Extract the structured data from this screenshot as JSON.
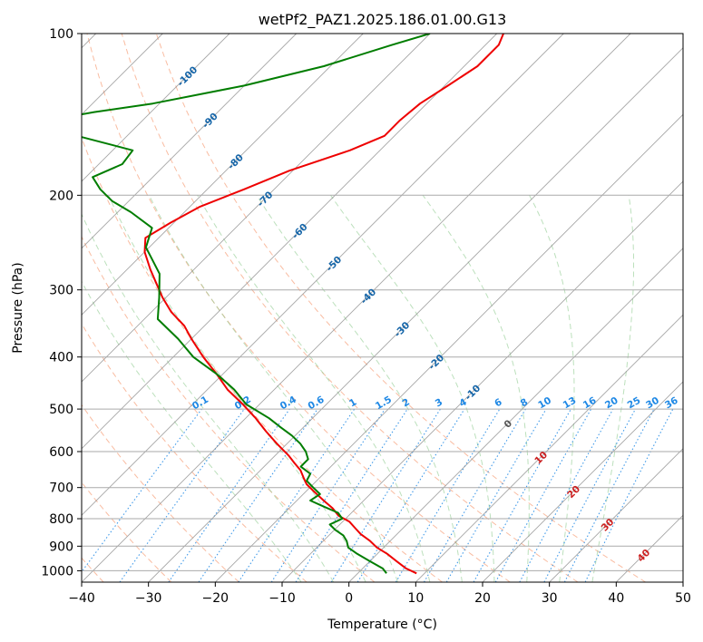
{
  "chart_data": {
    "type": "skew-t",
    "title": "wetPf2_PAZ1.2025.186.01.00.G13",
    "xlabel": "Temperature (°C)",
    "ylabel": "Pressure (hPa)",
    "xlim": [
      -40,
      50
    ],
    "ylim": [
      1050,
      100
    ],
    "x_ticks": [
      "−40",
      "−30",
      "−20",
      "−10",
      "0",
      "10",
      "20",
      "30",
      "40",
      "50"
    ],
    "y_ticks": [
      "100",
      "200",
      "300",
      "400",
      "500",
      "600",
      "700",
      "800",
      "900",
      "1000"
    ],
    "y_scale": "log",
    "grid": true,
    "series": [
      {
        "role": "temperature",
        "color": "#ee0000",
        "pressure": [
          1011,
          990,
          960,
          930,
          905,
          880,
          855,
          835,
          810,
          790,
          765,
          740,
          710,
          690,
          670,
          650,
          630,
          610,
          580,
          550,
          520,
          490,
          460,
          430,
          400,
          370,
          350,
          330,
          310,
          295,
          275,
          255,
          240,
          225,
          210,
          195,
          180,
          165,
          155,
          145,
          135,
          125,
          115,
          105,
          100
        ],
        "temperature": [
          8.8,
          6.5,
          4.0,
          1.5,
          -1.0,
          -3.0,
          -5.4,
          -7.0,
          -9.0,
          -11.5,
          -13.5,
          -16.0,
          -19.0,
          -21.0,
          -22.5,
          -24.0,
          -26.0,
          -28.0,
          -31.5,
          -35.0,
          -38.5,
          -42.5,
          -47.0,
          -51.0,
          -55.5,
          -60.0,
          -63.0,
          -67.0,
          -70.5,
          -73.0,
          -76.5,
          -80.0,
          -82.0,
          -80.5,
          -78.5,
          -74.5,
          -70.5,
          -64.5,
          -61.5,
          -61.5,
          -61.0,
          -59.5,
          -58.0,
          -58.0,
          -59.0
        ],
        "label": "temperature"
      },
      {
        "role": "dewpoint",
        "color": "#007d00",
        "pressure": [
          1011,
          990,
          960,
          930,
          905,
          880,
          860,
          840,
          820,
          800,
          780,
          760,
          740,
          720,
          700,
          680,
          660,
          640,
          620,
          600,
          580,
          560,
          540,
          520,
          490,
          460,
          430,
          400,
          370,
          340,
          310,
          280,
          250,
          230,
          215,
          205,
          195,
          185,
          175,
          165,
          155,
          150,
          145,
          140,
          135,
          125,
          115,
          105,
          100
        ],
        "temperature": [
          4.3,
          3.0,
          0.0,
          -3.0,
          -5.3,
          -6.5,
          -7.8,
          -9.8,
          -11.5,
          -10.5,
          -12.0,
          -15.0,
          -18.0,
          -17.5,
          -19.5,
          -21.5,
          -22.0,
          -24.5,
          -24.5,
          -26.0,
          -28.0,
          -30.5,
          -33.5,
          -36.5,
          -42.0,
          -46.0,
          -51.0,
          -57.0,
          -62.0,
          -68.0,
          -71.0,
          -74.5,
          -80.5,
          -82.5,
          -88.0,
          -92.5,
          -96.0,
          -99.0,
          -96.5,
          -97.0,
          -107.5,
          -121.5,
          -114.0,
          -108.5,
          -101.0,
          -90.0,
          -81.0,
          -74.0,
          -70.0
        ],
        "label": "dewpoint"
      }
    ],
    "dry_adiabats_C": [
      -100,
      -90,
      -80,
      -70,
      -60,
      -50,
      -40,
      -30,
      -20,
      -10,
      0,
      10,
      20,
      30,
      40
    ],
    "moist_adiabats_C": [
      -10,
      -5,
      0,
      5,
      10,
      15,
      20,
      25,
      30,
      35
    ],
    "mixing_ratio_lines": [
      "0.1",
      "0.2",
      "0.4",
      "0.6",
      "1",
      "1.5",
      "2",
      "3",
      "4",
      "6",
      "8",
      "10",
      "13",
      "16",
      "20",
      "25",
      "30",
      "36"
    ],
    "isotherm_labels": [
      {
        "text": "-100",
        "t": -100,
        "p": 120
      },
      {
        "text": "-90",
        "t": -90,
        "p": 145
      },
      {
        "text": "-80",
        "t": -80,
        "p": 173
      },
      {
        "text": "-70",
        "t": -70,
        "p": 203
      },
      {
        "text": "-60",
        "t": -60,
        "p": 233
      },
      {
        "text": "-50",
        "t": -50,
        "p": 268
      },
      {
        "text": "-40",
        "t": -40,
        "p": 308
      },
      {
        "text": "-30",
        "t": -30,
        "p": 355
      },
      {
        "text": "-20",
        "t": -20,
        "p": 408
      },
      {
        "text": "-10",
        "t": -10,
        "p": 465
      },
      {
        "text": "0",
        "t": 0,
        "p": 532
      },
      {
        "text": "10",
        "t": 10,
        "p": 615
      },
      {
        "text": "20",
        "t": 20,
        "p": 712
      },
      {
        "text": "30",
        "t": 30,
        "p": 820
      },
      {
        "text": "40",
        "t": 40,
        "p": 935
      }
    ],
    "colors": {
      "dry_adiabat": "#f7a582",
      "moist_adiabat": "#8fcc8f",
      "mixing_ratio": "#1e88e5",
      "isotherm_label_cold": "#1565a8",
      "isotherm_label_zero": "#555555",
      "isotherm_label_warm": "#cc2020",
      "isobar": "#aaaaaa",
      "isotherm": "#888888",
      "special_adiabat": "#d2b48c"
    }
  }
}
